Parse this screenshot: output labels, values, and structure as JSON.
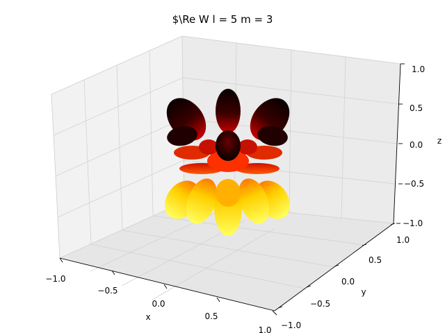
{
  "chart_data": {
    "type": "surface3d",
    "title": "$\\Re W l = 5 m = 3",
    "xlabel": "x",
    "ylabel": "y",
    "zlabel": "z",
    "xlim": [
      -1.0,
      1.0
    ],
    "ylim": [
      -1.0,
      1.0
    ],
    "zlim": [
      -1.0,
      1.0
    ],
    "x_ticks": [
      "−1.0",
      "−0.5",
      "0.0",
      "0.5",
      "1.0"
    ],
    "y_ticks": [
      "−1.0",
      "−0.5",
      "0.0",
      "0.5",
      "1.0"
    ],
    "z_ticks": [
      "−1.0",
      "−0.5",
      "0.0",
      "0.5",
      "1.0"
    ],
    "grid": true,
    "colormap": "hot",
    "surface": {
      "function": "real part of spherical harmonic",
      "l": 5,
      "m": 3,
      "lobes_upper": 6,
      "lobes_lower": 6
    }
  }
}
